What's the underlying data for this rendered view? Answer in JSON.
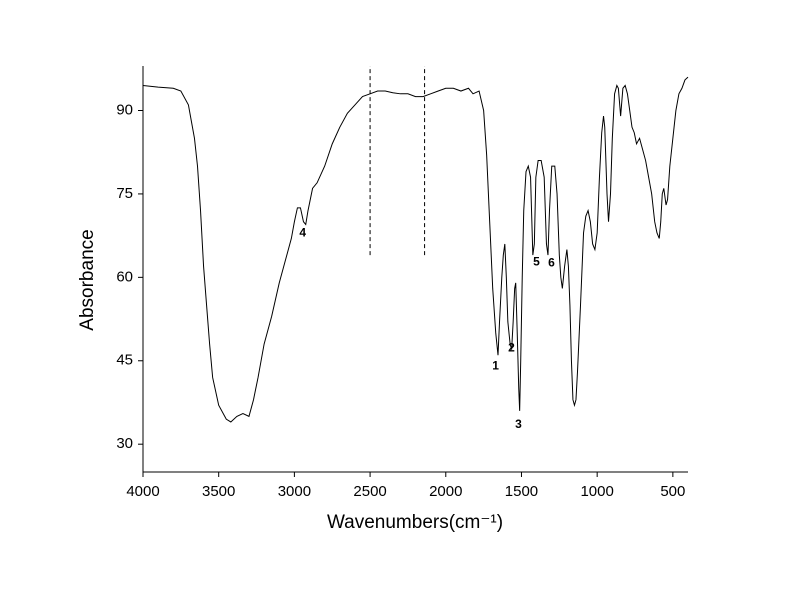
{
  "chart_data": {
    "type": "line",
    "xlabel": "Wavenumbers(cm⁻¹)",
    "ylabel": "Absorbance",
    "color": "#000000",
    "xlim": [
      4000,
      400
    ],
    "ylim": [
      25,
      98
    ],
    "xticks": [
      4000,
      3500,
      3000,
      2500,
      2000,
      1500,
      1000,
      500
    ],
    "yticks": [
      30,
      45,
      60,
      75,
      90
    ],
    "x": [
      4000,
      3900,
      3800,
      3750,
      3700,
      3680,
      3660,
      3640,
      3620,
      3600,
      3580,
      3560,
      3540,
      3500,
      3450,
      3420,
      3380,
      3340,
      3300,
      3270,
      3240,
      3200,
      3150,
      3100,
      3060,
      3020,
      3000,
      2980,
      2960,
      2940,
      2925,
      2910,
      2880,
      2850,
      2800,
      2750,
      2700,
      2650,
      2600,
      2550,
      2500,
      2450,
      2400,
      2350,
      2300,
      2250,
      2200,
      2150,
      2100,
      2050,
      2000,
      1950,
      1900,
      1850,
      1820,
      1780,
      1750,
      1730,
      1710,
      1690,
      1670,
      1655,
      1645,
      1630,
      1620,
      1610,
      1600,
      1590,
      1575,
      1565,
      1555,
      1545,
      1538,
      1528,
      1518,
      1512,
      1505,
      1495,
      1485,
      1470,
      1455,
      1440,
      1425,
      1415,
      1405,
      1390,
      1370,
      1350,
      1335,
      1325,
      1315,
      1300,
      1280,
      1265,
      1250,
      1240,
      1230,
      1215,
      1200,
      1190,
      1180,
      1170,
      1160,
      1150,
      1140,
      1130,
      1110,
      1090,
      1075,
      1060,
      1045,
      1030,
      1015,
      1000,
      985,
      970,
      958,
      950,
      935,
      925,
      912,
      900,
      885,
      870,
      860,
      845,
      830,
      815,
      800,
      785,
      770,
      755,
      740,
      720,
      700,
      680,
      660,
      640,
      620,
      605,
      590,
      580,
      570,
      560,
      545,
      535,
      520,
      500,
      480,
      460,
      440,
      420,
      400
    ],
    "values": [
      94.5,
      94.2,
      94,
      93.5,
      91,
      88,
      85,
      80,
      72,
      62,
      55,
      48,
      42,
      37,
      34.5,
      34,
      35,
      35.5,
      35,
      38,
      42,
      48,
      53,
      59,
      63,
      67,
      70,
      72.5,
      72.5,
      70,
      69.5,
      72,
      76,
      77,
      80,
      84,
      87,
      89.5,
      91,
      92.5,
      93,
      93.5,
      93.5,
      93.2,
      93,
      93,
      92.5,
      92.5,
      93,
      93.5,
      94,
      94,
      93.5,
      94,
      93,
      93.5,
      90,
      82,
      70,
      58,
      50,
      46,
      52,
      60,
      64,
      66,
      60,
      52,
      48,
      47,
      52,
      58,
      59,
      50,
      40,
      36,
      45,
      60,
      72,
      79,
      80,
      78,
      64,
      66,
      78,
      81,
      81,
      78,
      66,
      64,
      72,
      80,
      80,
      75,
      64,
      60,
      58,
      62,
      65,
      62,
      55,
      45,
      38,
      37,
      38,
      43,
      55,
      68,
      71,
      72,
      70,
      66,
      65,
      68,
      78,
      86,
      89,
      87,
      75,
      70,
      75,
      85,
      93,
      94.5,
      94,
      89,
      94,
      94.5,
      93,
      90,
      87,
      86,
      84,
      85,
      83,
      81,
      78,
      75,
      70,
      68,
      67,
      70,
      75,
      76,
      73,
      74,
      80,
      85,
      90,
      93,
      94,
      95.5,
      96
    ],
    "reference_lines": [
      {
        "x": 2500,
        "ymin": 64
      },
      {
        "x": 2140,
        "ymin": 64
      }
    ],
    "annotations": [
      {
        "text": "1",
        "x": 1671,
        "y": 44
      },
      {
        "text": "2",
        "x": 1566,
        "y": 47.2
      },
      {
        "text": "3",
        "x": 1520,
        "y": 33.5
      },
      {
        "text": "4",
        "x": 2945,
        "y": 67.9
      },
      {
        "text": "5",
        "x": 1401,
        "y": 62.7
      },
      {
        "text": "6",
        "x": 1302,
        "y": 62.5
      }
    ]
  }
}
